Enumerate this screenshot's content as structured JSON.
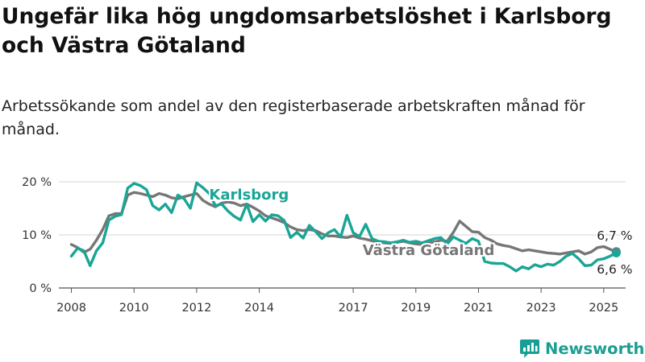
{
  "title": "Ungefär lika hög ungdomsarbetslöshet i Karlsborg och Västra Götaland",
  "subtitle": "Arbetssökande som andel av den registerbaserade arbetskraften månad för månad.",
  "brand": "Newsworthy",
  "colors": {
    "karlsborg": "#1aa596",
    "vastra_gotaland": "#767676",
    "grid": "#d6d6d6",
    "brand": "#1a9e93"
  },
  "chart_data": {
    "type": "line",
    "title": "Ungefär lika hög ungdomsarbetslöshet i Karlsborg och Västra Götaland",
    "subtitle": "Arbetssökande som andel av den registerbaserade arbetskraften månad för månad.",
    "xlabel": "",
    "ylabel": "",
    "xlim": [
      2007.6,
      2025.7
    ],
    "ylim": [
      0,
      20
    ],
    "grid": true,
    "x_tick_values": [
      2008,
      2010,
      2012,
      2014,
      2017,
      2019,
      2021,
      2023,
      2025
    ],
    "x_tick_labels": [
      "2008",
      "2010",
      "2012",
      "2014",
      "2017",
      "2019",
      "2021",
      "2023",
      "2025"
    ],
    "y_tick_values": [
      0,
      10,
      20
    ],
    "y_tick_labels": [
      "0 %",
      "10 %",
      "20 %"
    ],
    "series": [
      {
        "name": "Karlsborg",
        "color": "#1aa596",
        "end_label": "6,6 %",
        "points": [
          [
            2008.0,
            6.0
          ],
          [
            2008.2,
            7.5
          ],
          [
            2008.4,
            7.0
          ],
          [
            2008.6,
            4.2
          ],
          [
            2008.8,
            7.0
          ],
          [
            2009.0,
            8.5
          ],
          [
            2009.2,
            12.8
          ],
          [
            2009.4,
            13.5
          ],
          [
            2009.6,
            13.8
          ],
          [
            2009.8,
            18.8
          ],
          [
            2010.0,
            19.7
          ],
          [
            2010.2,
            19.3
          ],
          [
            2010.4,
            18.5
          ],
          [
            2010.6,
            15.5
          ],
          [
            2010.8,
            14.7
          ],
          [
            2011.0,
            15.8
          ],
          [
            2011.2,
            14.2
          ],
          [
            2011.4,
            17.5
          ],
          [
            2011.6,
            16.8
          ],
          [
            2011.8,
            15.0
          ],
          [
            2012.0,
            19.8
          ],
          [
            2012.2,
            18.9
          ],
          [
            2012.4,
            17.8
          ],
          [
            2012.6,
            15.5
          ],
          [
            2012.8,
            15.8
          ],
          [
            2013.0,
            14.5
          ],
          [
            2013.2,
            13.5
          ],
          [
            2013.4,
            12.8
          ],
          [
            2013.6,
            15.8
          ],
          [
            2013.8,
            12.5
          ],
          [
            2014.0,
            13.8
          ],
          [
            2014.2,
            12.6
          ],
          [
            2014.4,
            13.8
          ],
          [
            2014.6,
            13.6
          ],
          [
            2014.8,
            12.7
          ],
          [
            2015.0,
            9.5
          ],
          [
            2015.2,
            10.5
          ],
          [
            2015.4,
            9.4
          ],
          [
            2015.6,
            11.8
          ],
          [
            2015.8,
            10.6
          ],
          [
            2016.0,
            9.3
          ],
          [
            2016.2,
            10.4
          ],
          [
            2016.4,
            11.0
          ],
          [
            2016.6,
            9.6
          ],
          [
            2016.8,
            13.7
          ],
          [
            2017.0,
            10.4
          ],
          [
            2017.2,
            9.7
          ],
          [
            2017.4,
            12.0
          ],
          [
            2017.6,
            9.3
          ],
          [
            2017.8,
            8.8
          ],
          [
            2018.0,
            8.7
          ],
          [
            2018.2,
            8.5
          ],
          [
            2018.4,
            8.7
          ],
          [
            2018.6,
            9.0
          ],
          [
            2018.8,
            8.6
          ],
          [
            2019.0,
            8.8
          ],
          [
            2019.2,
            8.5
          ],
          [
            2019.4,
            8.9
          ],
          [
            2019.6,
            9.3
          ],
          [
            2019.8,
            9.5
          ],
          [
            2020.0,
            8.3
          ],
          [
            2020.2,
            9.6
          ],
          [
            2020.4,
            9.0
          ],
          [
            2020.6,
            8.4
          ],
          [
            2020.8,
            9.3
          ],
          [
            2021.0,
            8.8
          ],
          [
            2021.2,
            5.0
          ],
          [
            2021.4,
            4.7
          ],
          [
            2021.6,
            4.6
          ],
          [
            2021.8,
            4.6
          ],
          [
            2022.0,
            4.0
          ],
          [
            2022.2,
            3.2
          ],
          [
            2022.4,
            4.0
          ],
          [
            2022.6,
            3.6
          ],
          [
            2022.8,
            4.4
          ],
          [
            2023.0,
            4.0
          ],
          [
            2023.2,
            4.5
          ],
          [
            2023.4,
            4.3
          ],
          [
            2023.6,
            5.0
          ],
          [
            2023.8,
            6.0
          ],
          [
            2024.0,
            6.5
          ],
          [
            2024.2,
            5.5
          ],
          [
            2024.4,
            4.2
          ],
          [
            2024.6,
            4.3
          ],
          [
            2024.8,
            5.3
          ],
          [
            2025.0,
            5.5
          ],
          [
            2025.2,
            6.0
          ],
          [
            2025.4,
            6.6
          ]
        ]
      },
      {
        "name": "Västra Götaland",
        "color": "#767676",
        "end_label": "6,7 %",
        "points": [
          [
            2008.0,
            8.2
          ],
          [
            2008.2,
            7.6
          ],
          [
            2008.4,
            6.7
          ],
          [
            2008.6,
            7.3
          ],
          [
            2008.8,
            9.0
          ],
          [
            2009.0,
            11.0
          ],
          [
            2009.2,
            13.6
          ],
          [
            2009.4,
            14.0
          ],
          [
            2009.6,
            14.0
          ],
          [
            2009.8,
            17.5
          ],
          [
            2010.0,
            18.0
          ],
          [
            2010.2,
            17.8
          ],
          [
            2010.4,
            17.5
          ],
          [
            2010.6,
            17.2
          ],
          [
            2010.8,
            17.8
          ],
          [
            2011.0,
            17.5
          ],
          [
            2011.2,
            17.0
          ],
          [
            2011.4,
            16.8
          ],
          [
            2011.6,
            17.2
          ],
          [
            2011.8,
            17.5
          ],
          [
            2012.0,
            17.8
          ],
          [
            2012.2,
            16.5
          ],
          [
            2012.4,
            15.8
          ],
          [
            2012.6,
            15.3
          ],
          [
            2012.8,
            16.0
          ],
          [
            2013.0,
            16.2
          ],
          [
            2013.2,
            16.0
          ],
          [
            2013.4,
            15.5
          ],
          [
            2013.6,
            15.8
          ],
          [
            2013.8,
            15.2
          ],
          [
            2014.0,
            14.5
          ],
          [
            2014.2,
            13.6
          ],
          [
            2014.4,
            13.2
          ],
          [
            2014.6,
            12.8
          ],
          [
            2014.8,
            12.3
          ],
          [
            2015.0,
            11.5
          ],
          [
            2015.2,
            11.0
          ],
          [
            2015.4,
            10.8
          ],
          [
            2015.6,
            11.0
          ],
          [
            2015.8,
            10.8
          ],
          [
            2016.0,
            10.2
          ],
          [
            2016.2,
            9.8
          ],
          [
            2016.4,
            9.8
          ],
          [
            2016.6,
            9.6
          ],
          [
            2016.8,
            9.5
          ],
          [
            2017.0,
            9.8
          ],
          [
            2017.2,
            9.4
          ],
          [
            2017.4,
            9.2
          ],
          [
            2017.6,
            8.9
          ],
          [
            2017.8,
            8.6
          ],
          [
            2018.0,
            8.5
          ],
          [
            2018.2,
            8.4
          ],
          [
            2018.4,
            8.6
          ],
          [
            2018.6,
            8.8
          ],
          [
            2018.8,
            8.5
          ],
          [
            2019.0,
            8.3
          ],
          [
            2019.2,
            8.2
          ],
          [
            2019.4,
            8.5
          ],
          [
            2019.6,
            8.7
          ],
          [
            2019.8,
            9.0
          ],
          [
            2020.0,
            8.8
          ],
          [
            2020.2,
            10.5
          ],
          [
            2020.4,
            12.6
          ],
          [
            2020.6,
            11.6
          ],
          [
            2020.8,
            10.6
          ],
          [
            2021.0,
            10.5
          ],
          [
            2021.2,
            9.5
          ],
          [
            2021.4,
            9.0
          ],
          [
            2021.6,
            8.3
          ],
          [
            2021.8,
            8.0
          ],
          [
            2022.0,
            7.8
          ],
          [
            2022.2,
            7.4
          ],
          [
            2022.4,
            7.0
          ],
          [
            2022.6,
            7.2
          ],
          [
            2022.8,
            7.0
          ],
          [
            2023.0,
            6.8
          ],
          [
            2023.2,
            6.6
          ],
          [
            2023.4,
            6.5
          ],
          [
            2023.6,
            6.4
          ],
          [
            2023.8,
            6.6
          ],
          [
            2024.0,
            6.8
          ],
          [
            2024.2,
            7.0
          ],
          [
            2024.4,
            6.4
          ],
          [
            2024.6,
            6.8
          ],
          [
            2024.8,
            7.6
          ],
          [
            2025.0,
            7.8
          ],
          [
            2025.2,
            7.3
          ],
          [
            2025.4,
            6.7
          ]
        ]
      }
    ]
  }
}
